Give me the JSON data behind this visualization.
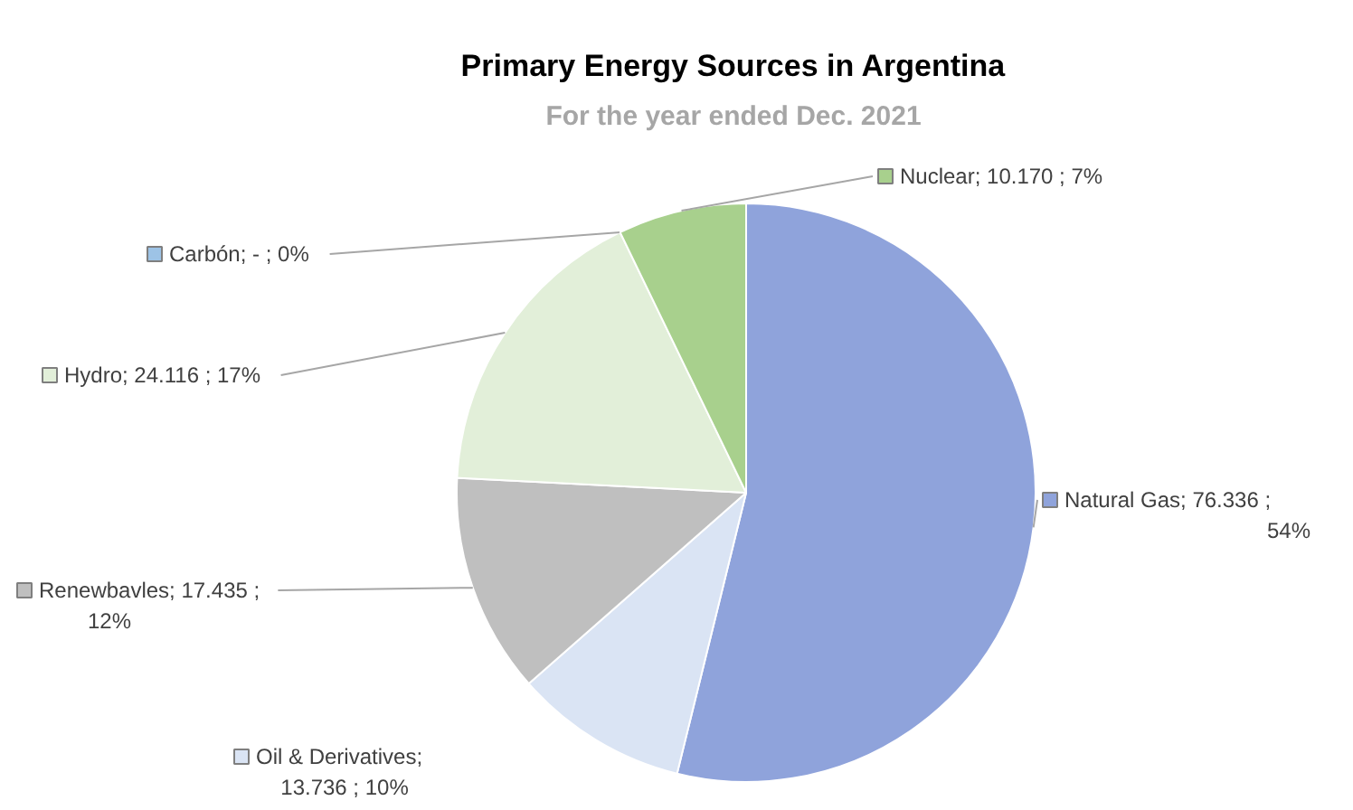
{
  "chart_data": {
    "type": "pie",
    "title": "Primary Energy Sources in Argentina",
    "subtitle": "For the year ended Dec. 2021",
    "categories": [
      "Natural Gas",
      "Oil & Derivatives",
      "Renewbavles",
      "Hydro",
      "Carbón",
      "Nuclear"
    ],
    "values": [
      76.336,
      13.736,
      17.435,
      24.116,
      0,
      10.17
    ],
    "colors": [
      "#8fa3db",
      "#dae4f4",
      "#bfbfbf",
      "#e2efd9",
      "#9dc3e6",
      "#a8d08d"
    ],
    "value_labels": [
      "; 76.336 ; 54%",
      "; 13.736 ; 10%",
      "; 17.435 ; 12%",
      "; 24.116 ; 17%",
      "; - ; 0%",
      "; 10.170 ; 7%"
    ],
    "legend": "left"
  }
}
